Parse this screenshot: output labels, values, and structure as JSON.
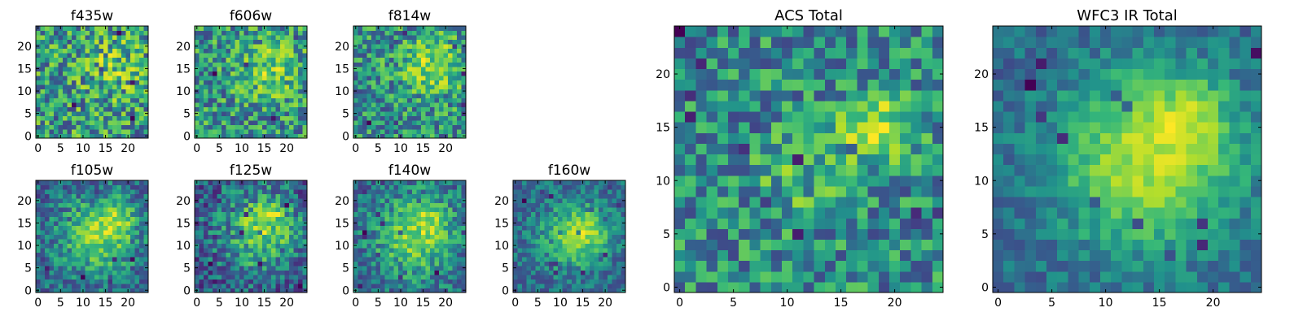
{
  "chart_data": [
    {
      "type": "heatmap",
      "title": "f435w",
      "x_ticks": [
        0,
        5,
        10,
        15,
        20
      ],
      "y_ticks": [
        0,
        5,
        10,
        15,
        20
      ],
      "xlim": [
        -0.5,
        24.5
      ],
      "ylim": [
        -0.5,
        24.5
      ],
      "grid_size": 25,
      "colormap": "viridis",
      "noise": 0.92,
      "blobs": [
        {
          "cx": 17,
          "cy": 15,
          "s": 5,
          "a": 0.25
        }
      ]
    },
    {
      "type": "heatmap",
      "title": "f606w",
      "x_ticks": [
        0,
        5,
        10,
        15,
        20
      ],
      "y_ticks": [
        0,
        5,
        10,
        15,
        20
      ],
      "xlim": [
        -0.5,
        24.5
      ],
      "ylim": [
        -0.5,
        24.5
      ],
      "grid_size": 25,
      "colormap": "viridis",
      "noise": 0.85,
      "blobs": [
        {
          "cx": 17,
          "cy": 15,
          "s": 5,
          "a": 0.35
        }
      ]
    },
    {
      "type": "heatmap",
      "title": "f814w",
      "x_ticks": [
        0,
        5,
        10,
        15,
        20
      ],
      "y_ticks": [
        0,
        5,
        10,
        15,
        20
      ],
      "xlim": [
        -0.5,
        24.5
      ],
      "ylim": [
        -0.5,
        24.5
      ],
      "grid_size": 25,
      "colormap": "viridis",
      "noise": 0.8,
      "blobs": [
        {
          "cx": 17,
          "cy": 16,
          "s": 5,
          "a": 0.45
        }
      ]
    },
    {
      "type": "heatmap",
      "title": "f105w",
      "x_ticks": [
        0,
        5,
        10,
        15,
        20
      ],
      "y_ticks": [
        0,
        5,
        10,
        15,
        20
      ],
      "xlim": [
        -0.5,
        24.5
      ],
      "ylim": [
        -0.5,
        24.5
      ],
      "grid_size": 25,
      "colormap": "viridis",
      "noise": 0.55,
      "blobs": [
        {
          "cx": 13,
          "cy": 12,
          "s": 6,
          "a": 0.6
        },
        {
          "cx": 18,
          "cy": 16,
          "s": 3,
          "a": 0.35
        }
      ]
    },
    {
      "type": "heatmap",
      "title": "f125w",
      "x_ticks": [
        0,
        5,
        10,
        15,
        20
      ],
      "y_ticks": [
        0,
        5,
        10,
        15,
        20
      ],
      "xlim": [
        -0.5,
        24.5
      ],
      "ylim": [
        -0.5,
        24.5
      ],
      "grid_size": 25,
      "colormap": "viridis",
      "noise": 0.6,
      "blobs": [
        {
          "cx": 14,
          "cy": 13,
          "s": 6,
          "a": 0.55
        },
        {
          "cx": 17,
          "cy": 17,
          "s": 3,
          "a": 0.25
        }
      ]
    },
    {
      "type": "heatmap",
      "title": "f140w",
      "x_ticks": [
        0,
        5,
        10,
        15,
        20
      ],
      "y_ticks": [
        0,
        5,
        10,
        15,
        20
      ],
      "xlim": [
        -0.5,
        24.5
      ],
      "ylim": [
        -0.5,
        24.5
      ],
      "grid_size": 25,
      "colormap": "viridis",
      "noise": 0.55,
      "blobs": [
        {
          "cx": 13,
          "cy": 12,
          "s": 6,
          "a": 0.6
        },
        {
          "cx": 17,
          "cy": 17,
          "s": 3,
          "a": 0.3
        }
      ]
    },
    {
      "type": "heatmap",
      "title": "f160w",
      "x_ticks": [
        0,
        5,
        10,
        15,
        20
      ],
      "y_ticks": [
        0,
        5,
        10,
        15,
        20
      ],
      "xlim": [
        -0.5,
        24.5
      ],
      "ylim": [
        -0.5,
        24.5
      ],
      "grid_size": 25,
      "colormap": "viridis",
      "noise": 0.5,
      "blobs": [
        {
          "cx": 13,
          "cy": 12,
          "s": 5,
          "a": 0.65
        },
        {
          "cx": 17,
          "cy": 14,
          "s": 3,
          "a": 0.3
        }
      ]
    },
    {
      "type": "heatmap",
      "title": "ACS Total",
      "x_ticks": [
        0,
        5,
        10,
        15,
        20
      ],
      "y_ticks": [
        0,
        5,
        10,
        15,
        20
      ],
      "xlim": [
        -0.5,
        24.5
      ],
      "ylim": [
        -0.5,
        24.5
      ],
      "grid_size": 25,
      "colormap": "viridis",
      "noise": 0.7,
      "blobs": [
        {
          "cx": 18,
          "cy": 15,
          "s": 2.5,
          "a": 0.55
        },
        {
          "cx": 11,
          "cy": 10,
          "s": 3,
          "a": 0.25
        }
      ]
    },
    {
      "type": "heatmap",
      "title": "WFC3 IR Total",
      "x_ticks": [
        0,
        5,
        10,
        15,
        20
      ],
      "y_ticks": [
        0,
        5,
        10,
        15,
        20
      ],
      "xlim": [
        -0.5,
        24.5
      ],
      "ylim": [
        -0.5,
        24.5
      ],
      "grid_size": 25,
      "colormap": "viridis",
      "noise": 0.3,
      "blobs": [
        {
          "cx": 14,
          "cy": 12,
          "s": 6,
          "a": 0.7
        },
        {
          "cx": 18,
          "cy": 16,
          "s": 2.5,
          "a": 0.3
        }
      ]
    }
  ]
}
